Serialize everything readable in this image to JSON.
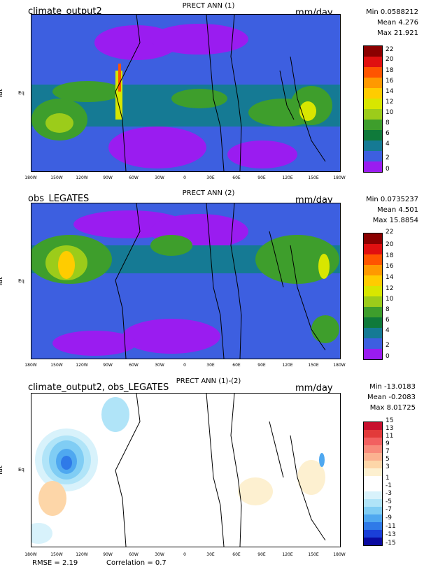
{
  "chart_data": [
    {
      "type": "heatmap",
      "case_name": "climate_output2",
      "title": "PRECT ANN (1)",
      "units": "mm/day",
      "ylabel": "lat",
      "ytick": "Eq",
      "xticks": [
        "180W",
        "150W",
        "120W",
        "90W",
        "60W",
        "30W",
        "0",
        "30E",
        "60E",
        "90E",
        "120E",
        "150E",
        "180W"
      ],
      "stats": {
        "min": "Min 0.0588212",
        "mean": "Mean 4.276",
        "max": "Max 21.921"
      },
      "colorbar": [
        "22",
        "20",
        "18",
        "16",
        "14",
        "12",
        "10",
        "8",
        "6",
        "4",
        "2",
        "0"
      ],
      "colors": [
        "#8b0000",
        "#e01010",
        "#ff5500",
        "#ff9900",
        "#ffcc00",
        "#d8e600",
        "#9ccc1a",
        "#3e9e2c",
        "#0f7a3a",
        "#157a94",
        "#3d5fe0",
        "#9a1cf0"
      ]
    },
    {
      "type": "heatmap",
      "case_name": "obs_LEGATES",
      "title": "PRECT ANN (2)",
      "units": "mm/day",
      "ylabel": "lat",
      "ytick": "Eq",
      "xticks": [
        "180W",
        "150W",
        "120W",
        "90W",
        "60W",
        "30W",
        "0",
        "30E",
        "60E",
        "90E",
        "120E",
        "150E",
        "180W"
      ],
      "stats": {
        "min": "Min 0.0735237",
        "mean": "Mean 4.501",
        "max": "Max 15.8854"
      },
      "colorbar": [
        "22",
        "20",
        "18",
        "16",
        "14",
        "12",
        "10",
        "8",
        "6",
        "4",
        "2",
        "0"
      ],
      "colors": [
        "#8b0000",
        "#e01010",
        "#ff5500",
        "#ff9900",
        "#ffcc00",
        "#d8e600",
        "#9ccc1a",
        "#3e9e2c",
        "#0f7a3a",
        "#157a94",
        "#3d5fe0",
        "#9a1cf0"
      ]
    },
    {
      "type": "heatmap",
      "case_name": "climate_output2, obs_LEGATES",
      "title": "PRECT ANN (1)-(2)",
      "units": "mm/day",
      "ylabel": "lat",
      "ytick": "Eq",
      "xticks": [
        "180W",
        "150W",
        "120W",
        "90W",
        "60W",
        "30W",
        "0",
        "30E",
        "60E",
        "90E",
        "120E",
        "150E",
        "180W"
      ],
      "stats": {
        "min": "Min -13.0183",
        "mean": "Mean -0.2083",
        "max": "Max 8.01725"
      },
      "colorbar": [
        "15",
        "13",
        "11",
        "9",
        "7",
        "5",
        "3",
        "1",
        "-1",
        "-3",
        "-5",
        "-7",
        "-9",
        "-11",
        "-13",
        "-15"
      ],
      "colors": [
        "#c8102e",
        "#e23a3a",
        "#f26060",
        "#f88a7a",
        "#fbb290",
        "#fdd6a8",
        "#fdf0d0",
        "#ffffff",
        "#ffffff",
        "#d8f2fb",
        "#b0e4f8",
        "#80cdf4",
        "#4fa8f0",
        "#2f7ae8",
        "#1a3fd8",
        "#0a0aa0"
      ],
      "rmse": "RMSE = 2.19",
      "correlation": "Correlation = 0.7"
    }
  ]
}
